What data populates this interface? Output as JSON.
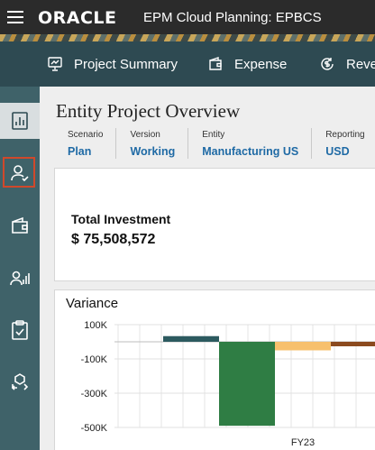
{
  "header": {
    "logo": "ORACLE",
    "title": "EPM Cloud Planning: EPBCS"
  },
  "nav": {
    "tabs": [
      {
        "label": "Project Summary",
        "icon": "presentation-chart-icon"
      },
      {
        "label": "Expense",
        "icon": "wallet-icon"
      },
      {
        "label": "Reve",
        "icon": "dollar-refresh-icon"
      }
    ]
  },
  "sidebar": {
    "items": [
      {
        "icon": "dashboard-chart-icon",
        "state": "active"
      },
      {
        "icon": "user-check-icon",
        "state": "selected"
      },
      {
        "icon": "wallet-icon"
      },
      {
        "icon": "user-analytics-icon"
      },
      {
        "icon": "clipboard-check-icon"
      },
      {
        "icon": "swap-cube-icon"
      }
    ]
  },
  "page": {
    "title": "Entity Project Overview"
  },
  "pov": [
    {
      "label": "Scenario",
      "value": "Plan"
    },
    {
      "label": "Version",
      "value": "Working"
    },
    {
      "label": "Entity",
      "value": "Manufacturing US"
    },
    {
      "label": "Reporting",
      "value": "USD"
    }
  ],
  "kpi": {
    "label": "Total Investment",
    "value": "$ 75,508,572"
  },
  "colors": {
    "topbar": "#2b2b2b",
    "navbar": "#2e4a52",
    "sidebar": "#3f6269",
    "link": "#1f6aa5",
    "selection": "#d0482b"
  },
  "chart_data": {
    "type": "bar",
    "title": "Variance",
    "categories": [
      "FY23"
    ],
    "y_ticks": [
      "100K",
      "-100K",
      "-300K",
      "-500K"
    ],
    "ylim": [
      -500000,
      100000
    ],
    "series": [
      {
        "values": [
          33000
        ],
        "color": "#2c5a5f"
      },
      {
        "values": [
          -490000
        ],
        "color": "#2f7d44"
      },
      {
        "values": [
          -50000
        ],
        "color": "#f7c06d"
      },
      {
        "values": [
          -25000
        ],
        "color": "#8b4a1e"
      }
    ]
  }
}
